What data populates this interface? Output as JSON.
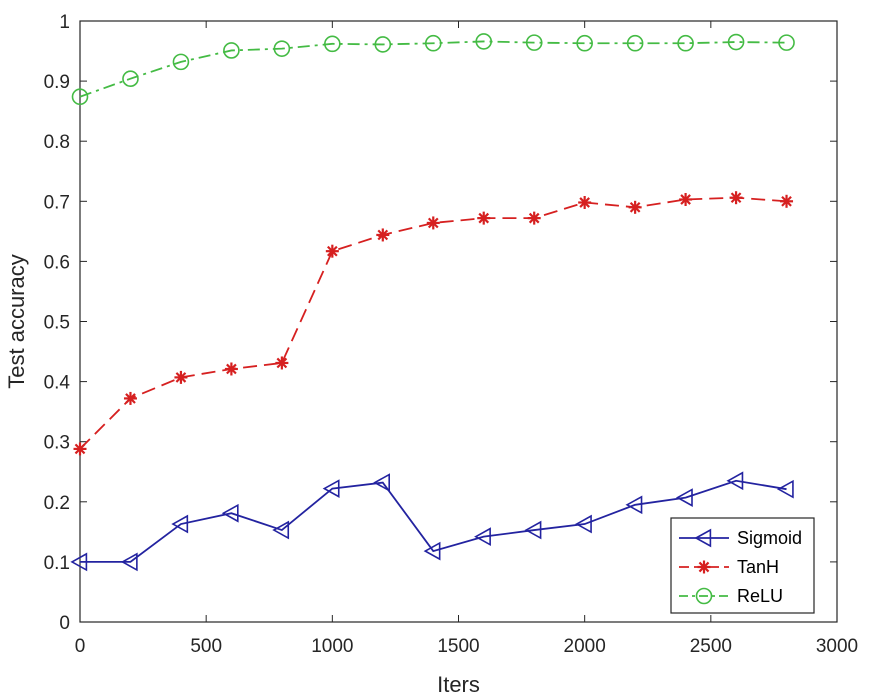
{
  "chart_data": {
    "type": "line",
    "xlabel": "Iters",
    "ylabel": "Test accuracy",
    "xlim": [
      0,
      3000
    ],
    "ylim": [
      0,
      1
    ],
    "xticks": [
      0,
      500,
      1000,
      1500,
      2000,
      2500,
      3000
    ],
    "xtick_labels": [
      "0",
      "500",
      "1000",
      "1500",
      "2000",
      "2500",
      "3000"
    ],
    "yticks": [
      0,
      0.1,
      0.2,
      0.3,
      0.4,
      0.5,
      0.6,
      0.7,
      0.8,
      0.9,
      1
    ],
    "ytick_labels": [
      "0",
      "0.1",
      "0.2",
      "0.3",
      "0.4",
      "0.5",
      "0.6",
      "0.7",
      "0.8",
      "0.9",
      "1"
    ],
    "grid": false,
    "legend_position": "bottom-right",
    "x": [
      0,
      200,
      400,
      600,
      800,
      1000,
      1200,
      1400,
      1600,
      1800,
      2000,
      2200,
      2400,
      2600,
      2800
    ],
    "series": [
      {
        "name": "Sigmoid",
        "color": "#2323a0",
        "line_style": "solid",
        "marker": "triangle-left",
        "values": [
          0.1,
          0.1,
          0.163,
          0.181,
          0.153,
          0.222,
          0.232,
          0.118,
          0.142,
          0.153,
          0.163,
          0.195,
          0.207,
          0.235,
          0.221
        ]
      },
      {
        "name": "TanH",
        "color": "#d62020",
        "line_style": "dashed",
        "marker": "asterisk",
        "values": [
          0.288,
          0.372,
          0.407,
          0.421,
          0.431,
          0.617,
          0.644,
          0.664,
          0.672,
          0.672,
          0.698,
          0.69,
          0.703,
          0.706,
          0.7
        ]
      },
      {
        "name": "ReLU",
        "color": "#44bb44",
        "line_style": "dash-dot",
        "marker": "circle",
        "values": [
          0.874,
          0.904,
          0.932,
          0.951,
          0.954,
          0.962,
          0.961,
          0.963,
          0.966,
          0.964,
          0.963,
          0.963,
          0.963,
          0.965,
          0.964
        ]
      }
    ]
  }
}
